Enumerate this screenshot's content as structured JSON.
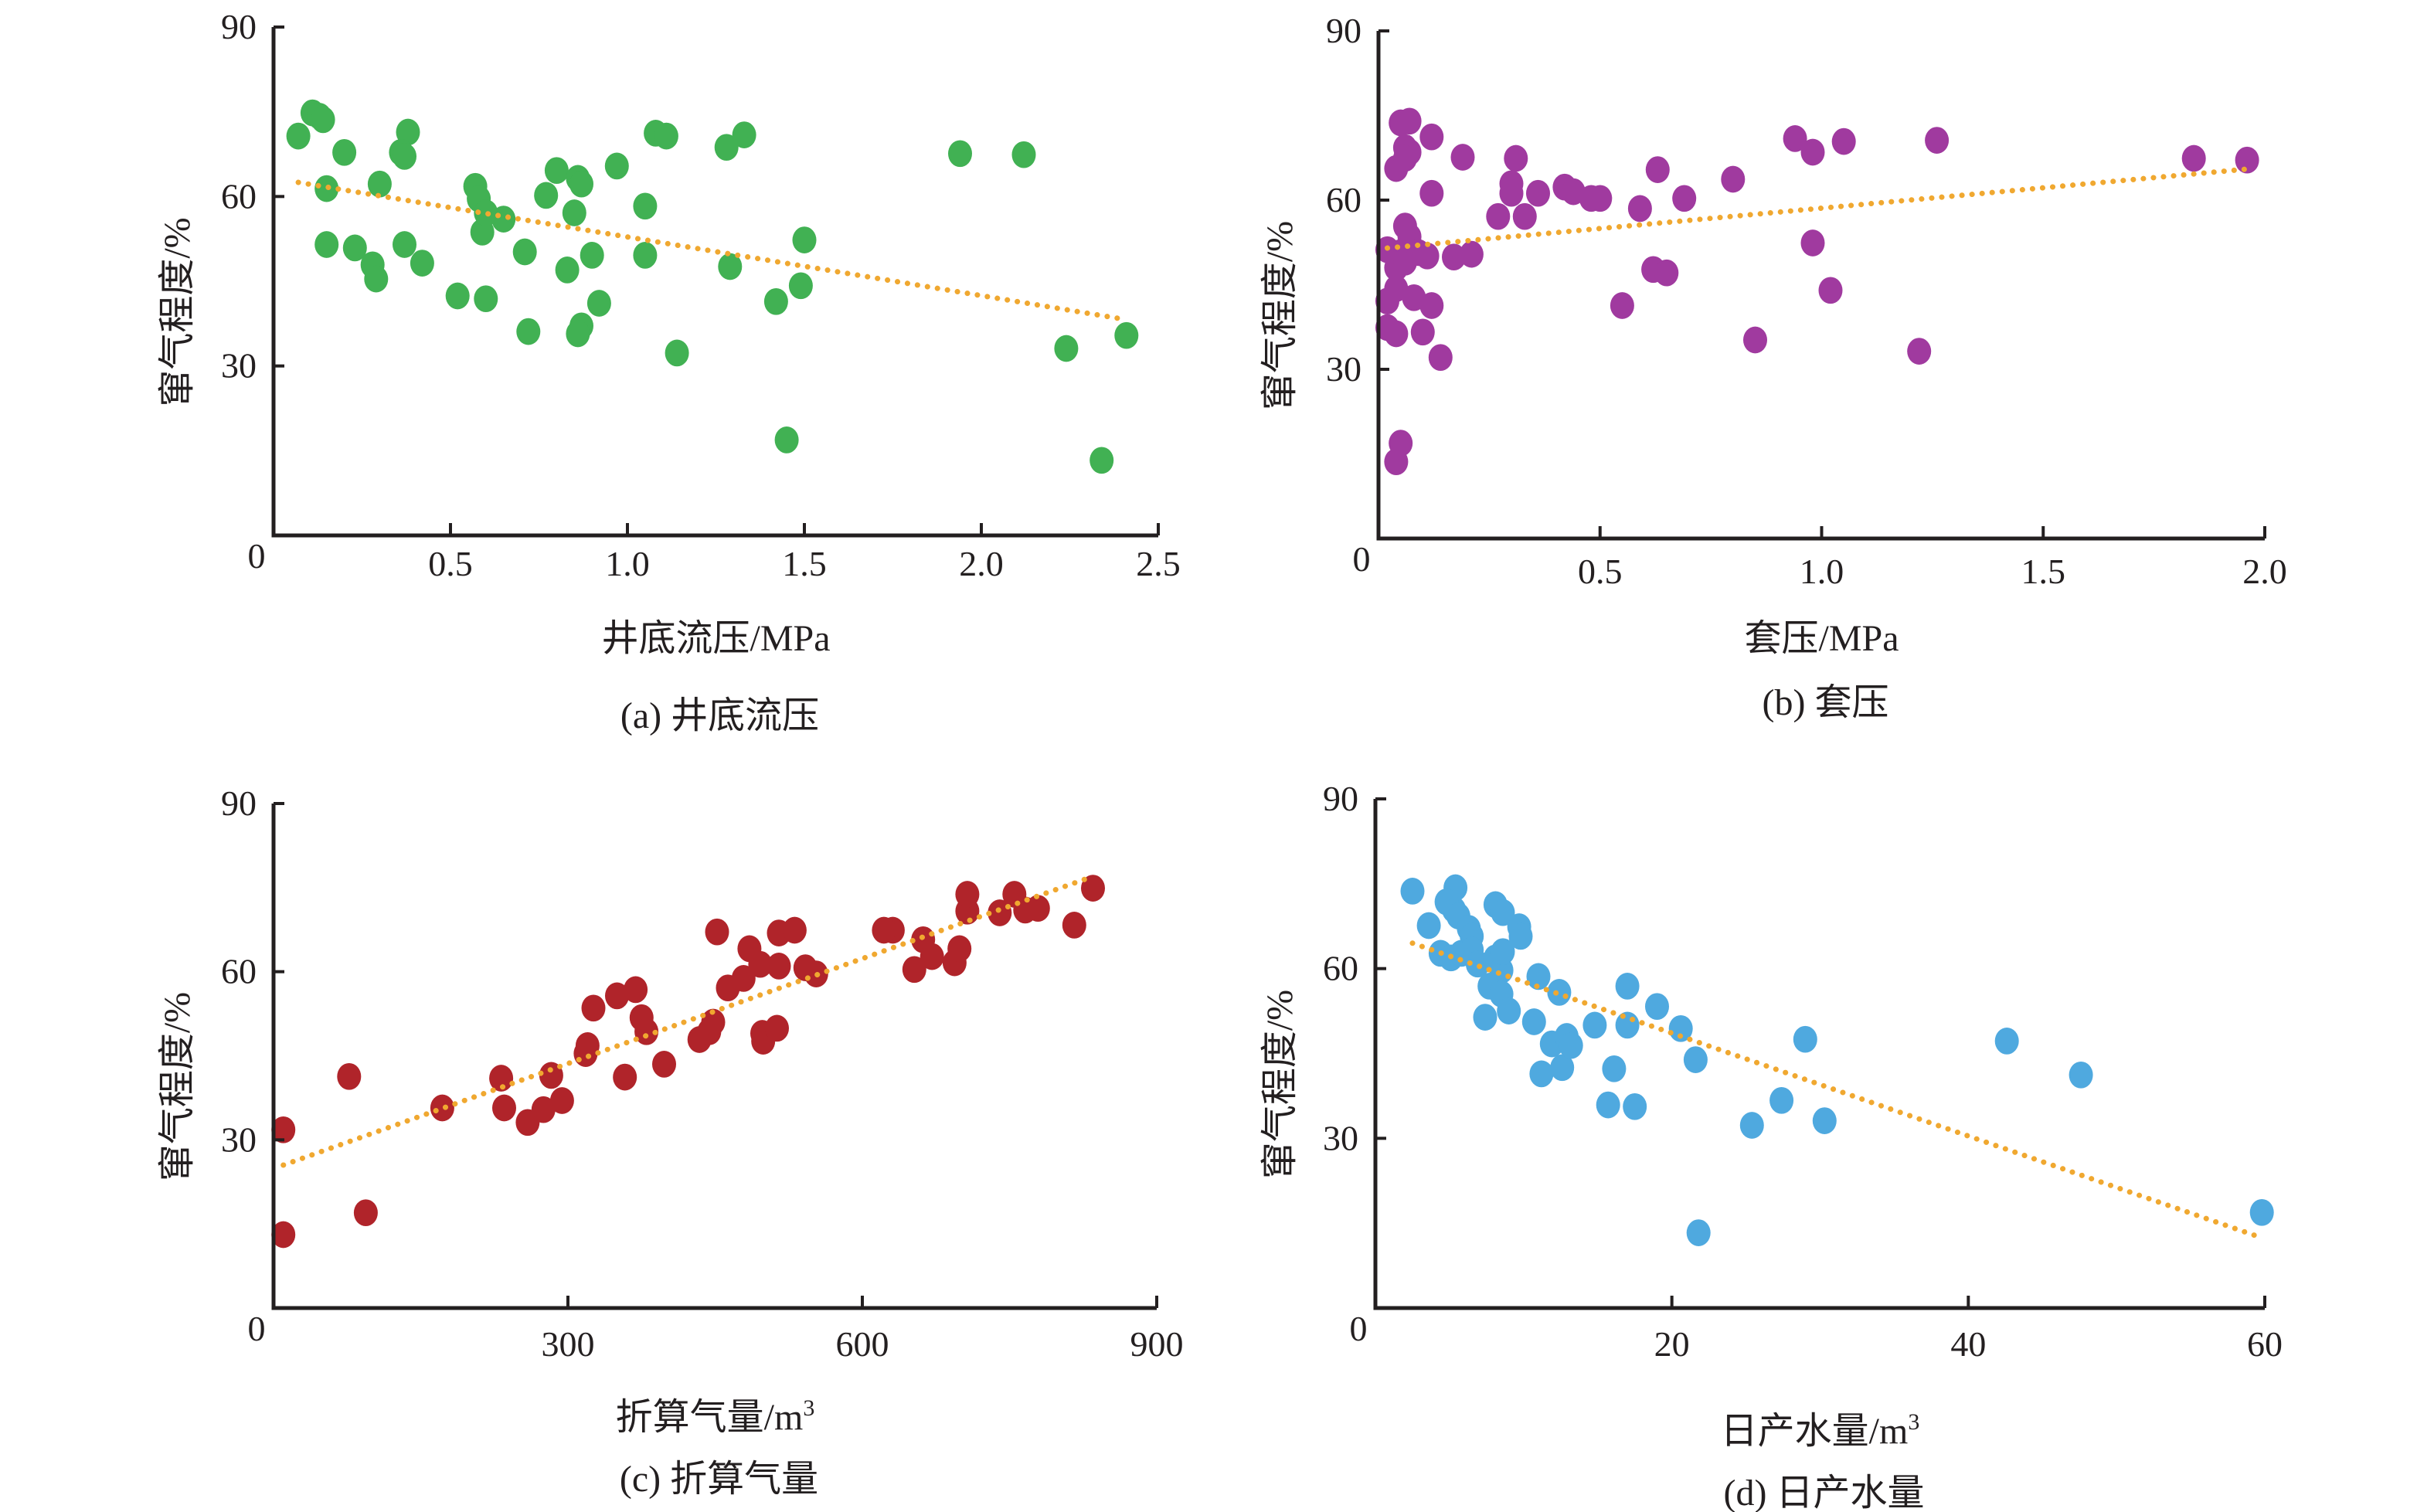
{
  "chart_data": [
    {
      "id": "a",
      "type": "scatter",
      "caption": "(a) 井底流压",
      "xlabel": "井底流压/MPa",
      "ylabel": "窜气程度/%",
      "xlim": [
        0,
        2.5
      ],
      "ylim": [
        0,
        90
      ],
      "xticks": [
        0,
        0.5,
        1.0,
        1.5,
        2.0,
        2.5
      ],
      "xtick_labels": [
        "0",
        "0.5",
        "1.0",
        "1.5",
        "2.0",
        "2.5"
      ],
      "yticks": [
        30,
        60,
        90
      ],
      "ytick_labels": [
        "30",
        "60",
        "90"
      ],
      "origin_label": "0",
      "grid": false,
      "color": "#41b153",
      "trend_color": "#f0a830",
      "trendline": {
        "x": [
          0.07,
          2.4
        ],
        "y": [
          62.5,
          38.3
        ]
      },
      "points": [
        [
          0.07,
          70.7
        ],
        [
          0.11,
          74.8
        ],
        [
          0.13,
          74.2
        ],
        [
          0.14,
          73.6
        ],
        [
          0.2,
          67.8
        ],
        [
          0.15,
          61.4
        ],
        [
          0.15,
          51.5
        ],
        [
          0.23,
          50.9
        ],
        [
          0.28,
          47.9
        ],
        [
          0.29,
          45.4
        ],
        [
          0.3,
          62.2
        ],
        [
          0.37,
          51.5
        ],
        [
          0.38,
          71.4
        ],
        [
          0.36,
          67.8
        ],
        [
          0.37,
          67.1
        ],
        [
          0.42,
          48.2
        ],
        [
          0.52,
          42.4
        ],
        [
          0.57,
          61.8
        ],
        [
          0.58,
          59.6
        ],
        [
          0.59,
          53.7
        ],
        [
          0.6,
          57.1
        ],
        [
          0.65,
          56.0
        ],
        [
          0.6,
          41.9
        ],
        [
          0.71,
          50.2
        ],
        [
          0.72,
          36.1
        ],
        [
          0.77,
          60.2
        ],
        [
          0.8,
          64.6
        ],
        [
          0.83,
          47.0
        ],
        [
          0.85,
          57.1
        ],
        [
          0.86,
          63.2
        ],
        [
          0.87,
          62.2
        ],
        [
          0.87,
          37.1
        ],
        [
          0.86,
          35.7
        ],
        [
          0.9,
          49.6
        ],
        [
          0.92,
          41.1
        ],
        [
          0.97,
          65.4
        ],
        [
          1.05,
          58.3
        ],
        [
          1.05,
          49.6
        ],
        [
          1.08,
          71.2
        ],
        [
          1.11,
          70.7
        ],
        [
          1.14,
          32.3
        ],
        [
          1.28,
          68.7
        ],
        [
          1.33,
          70.9
        ],
        [
          1.29,
          47.6
        ],
        [
          1.42,
          41.4
        ],
        [
          1.45,
          16.9
        ],
        [
          1.5,
          52.3
        ],
        [
          1.49,
          44.2
        ],
        [
          1.94,
          67.6
        ],
        [
          2.12,
          67.4
        ],
        [
          2.24,
          33.1
        ],
        [
          2.34,
          13.3
        ],
        [
          2.41,
          35.4
        ]
      ]
    },
    {
      "id": "b",
      "type": "scatter",
      "caption": "(b) 套压",
      "xlabel": "套压/MPa",
      "ylabel": "窜气程度/%",
      "xlim": [
        0,
        2.0
      ],
      "ylim": [
        0,
        90
      ],
      "xticks": [
        0,
        0.5,
        1.0,
        1.5,
        2.0
      ],
      "xtick_labels": [
        "0",
        "0.5",
        "1.0",
        "1.5",
        "2.0"
      ],
      "yticks": [
        30,
        60,
        90
      ],
      "ytick_labels": [
        "30",
        "60",
        "90"
      ],
      "origin_label": "0",
      "grid": false,
      "color": "#a03a9f",
      "trend_color": "#f0a830",
      "trendline": {
        "x": [
          0.02,
          1.96
        ],
        "y": [
          51.5,
          65.5
        ]
      },
      "points": [
        [
          0.04,
          65.6
        ],
        [
          0.05,
          73.7
        ],
        [
          0.07,
          74.0
        ],
        [
          0.06,
          69.3
        ],
        [
          0.07,
          68.5
        ],
        [
          0.06,
          67.4
        ],
        [
          0.12,
          71.2
        ],
        [
          0.19,
          67.6
        ],
        [
          0.12,
          61.2
        ],
        [
          0.06,
          55.4
        ],
        [
          0.07,
          53.5
        ],
        [
          0.02,
          51.2
        ],
        [
          0.05,
          50.7
        ],
        [
          0.04,
          48.0
        ],
        [
          0.06,
          49.0
        ],
        [
          0.09,
          50.7
        ],
        [
          0.11,
          50.1
        ],
        [
          0.17,
          49.9
        ],
        [
          0.21,
          50.4
        ],
        [
          0.04,
          44.3
        ],
        [
          0.02,
          42.1
        ],
        [
          0.08,
          42.7
        ],
        [
          0.12,
          41.3
        ],
        [
          0.02,
          37.4
        ],
        [
          0.04,
          36.3
        ],
        [
          0.1,
          36.6
        ],
        [
          0.14,
          32.1
        ],
        [
          0.05,
          16.9
        ],
        [
          0.04,
          13.6
        ],
        [
          0.27,
          57.1
        ],
        [
          0.31,
          67.4
        ],
        [
          0.3,
          62.9
        ],
        [
          0.3,
          61.2
        ],
        [
          0.33,
          57.1
        ],
        [
          0.36,
          61.2
        ],
        [
          0.42,
          62.3
        ],
        [
          0.44,
          61.5
        ],
        [
          0.48,
          60.3
        ],
        [
          0.5,
          60.3
        ],
        [
          0.55,
          41.3
        ],
        [
          0.59,
          58.5
        ],
        [
          0.62,
          47.7
        ],
        [
          0.65,
          47.1
        ],
        [
          0.63,
          65.4
        ],
        [
          0.69,
          60.3
        ],
        [
          0.8,
          63.7
        ],
        [
          0.85,
          35.2
        ],
        [
          0.94,
          70.9
        ],
        [
          0.98,
          68.5
        ],
        [
          0.98,
          52.4
        ],
        [
          1.02,
          44.0
        ],
        [
          1.05,
          70.4
        ],
        [
          1.22,
          33.2
        ],
        [
          1.26,
          70.6
        ],
        [
          1.84,
          67.4
        ],
        [
          1.96,
          67.1
        ]
      ]
    },
    {
      "id": "c",
      "type": "scatter",
      "caption": "(c) 折算气量",
      "xlabel": "折算气量/m",
      "xlabel_superscript": "3",
      "ylabel": "窜气程度/%",
      "xlim": [
        0,
        900
      ],
      "ylim": [
        0,
        90
      ],
      "xticks": [
        0,
        300,
        600,
        900
      ],
      "xtick_labels": [
        "0",
        "300",
        "600",
        "900"
      ],
      "yticks": [
        30,
        60,
        90
      ],
      "ytick_labels": [
        "30",
        "60",
        "90"
      ],
      "origin_label": "0",
      "grid": false,
      "color": "#b0242a",
      "trend_color": "#f0a830",
      "trendline": {
        "x": [
          10,
          835
        ],
        "y": [
          25.5,
          77.0
        ]
      },
      "points": [
        [
          10,
          31.8
        ],
        [
          10,
          13.1
        ],
        [
          77,
          41.3
        ],
        [
          94,
          17.0
        ],
        [
          172,
          35.7
        ],
        [
          232,
          41.0
        ],
        [
          235,
          35.7
        ],
        [
          259,
          33.1
        ],
        [
          275,
          35.4
        ],
        [
          283,
          41.5
        ],
        [
          294,
          37.0
        ],
        [
          320,
          46.8
        ],
        [
          318,
          45.4
        ],
        [
          326,
          53.5
        ],
        [
          350,
          55.7
        ],
        [
          358,
          41.2
        ],
        [
          369,
          56.8
        ],
        [
          375,
          51.8
        ],
        [
          380,
          49.3
        ],
        [
          398,
          43.5
        ],
        [
          434,
          47.9
        ],
        [
          444,
          49.3
        ],
        [
          448,
          51.0
        ],
        [
          452,
          67.1
        ],
        [
          463,
          57.1
        ],
        [
          479,
          58.8
        ],
        [
          485,
          64.1
        ],
        [
          496,
          61.3
        ],
        [
          498,
          49.0
        ],
        [
          499,
          47.6
        ],
        [
          513,
          49.9
        ],
        [
          515,
          61.0
        ],
        [
          515,
          66.9
        ],
        [
          531,
          67.4
        ],
        [
          542,
          60.7
        ],
        [
          553,
          59.6
        ],
        [
          631,
          67.4
        ],
        [
          622,
          67.4
        ],
        [
          653,
          60.4
        ],
        [
          662,
          65.7
        ],
        [
          671,
          62.7
        ],
        [
          694,
          61.6
        ],
        [
          699,
          64.1
        ],
        [
          707,
          70.8
        ],
        [
          707,
          73.8
        ],
        [
          740,
          70.5
        ],
        [
          755,
          73.8
        ],
        [
          766,
          71.0
        ],
        [
          779,
          71.3
        ],
        [
          816,
          68.3
        ],
        [
          835,
          74.9
        ]
      ]
    },
    {
      "id": "d",
      "type": "scatter",
      "caption": "(d) 日产水量",
      "xlabel": "日产水量/m",
      "xlabel_superscript": "3",
      "ylabel": "窜气程度/%",
      "xlim": [
        0,
        60
      ],
      "ylim": [
        0,
        90
      ],
      "xticks": [
        0,
        20,
        40,
        60
      ],
      "xtick_labels": [
        "0",
        "20",
        "40",
        "60"
      ],
      "yticks": [
        30,
        60,
        90
      ],
      "ytick_labels": [
        "30",
        "60",
        "90"
      ],
      "origin_label": "0",
      "grid": false,
      "color": "#4fa9df",
      "trend_color": "#f0a830",
      "trendline": {
        "x": [
          2.5,
          59.7
        ],
        "y": [
          64.5,
          12.5
        ]
      },
      "points": [
        [
          2.5,
          73.7
        ],
        [
          3.6,
          67.6
        ],
        [
          5.4,
          74.3
        ],
        [
          5.3,
          70.4
        ],
        [
          4.8,
          71.8
        ],
        [
          5.6,
          69.3
        ],
        [
          6.3,
          67.1
        ],
        [
          4.4,
          62.7
        ],
        [
          5.1,
          61.9
        ],
        [
          5.8,
          62.7
        ],
        [
          6.5,
          65.7
        ],
        [
          6.5,
          63.3
        ],
        [
          6.9,
          60.8
        ],
        [
          8.1,
          71.3
        ],
        [
          8.6,
          69.9
        ],
        [
          8.1,
          61.9
        ],
        [
          8.5,
          59.7
        ],
        [
          7.7,
          56.9
        ],
        [
          9.7,
          67.4
        ],
        [
          9.8,
          65.7
        ],
        [
          8.6,
          63.0
        ],
        [
          8.5,
          55.5
        ],
        [
          11.0,
          58.6
        ],
        [
          12.4,
          55.8
        ],
        [
          7.4,
          51.4
        ],
        [
          9.0,
          52.5
        ],
        [
          10.7,
          50.6
        ],
        [
          11.9,
          46.7
        ],
        [
          12.6,
          42.5
        ],
        [
          12.9,
          48.0
        ],
        [
          13.2,
          46.4
        ],
        [
          11.2,
          41.4
        ],
        [
          14.8,
          50.0
        ],
        [
          17.0,
          56.9
        ],
        [
          17.0,
          50.0
        ],
        [
          19.0,
          53.3
        ],
        [
          20.6,
          49.4
        ],
        [
          16.1,
          42.3
        ],
        [
          15.7,
          35.9
        ],
        [
          17.5,
          35.6
        ],
        [
          21.6,
          43.9
        ],
        [
          21.8,
          13.3
        ],
        [
          25.4,
          32.3
        ],
        [
          27.4,
          36.7
        ],
        [
          29.0,
          47.5
        ],
        [
          30.3,
          33.1
        ],
        [
          42.6,
          47.2
        ],
        [
          47.6,
          41.2
        ],
        [
          59.8,
          16.9
        ]
      ]
    }
  ]
}
